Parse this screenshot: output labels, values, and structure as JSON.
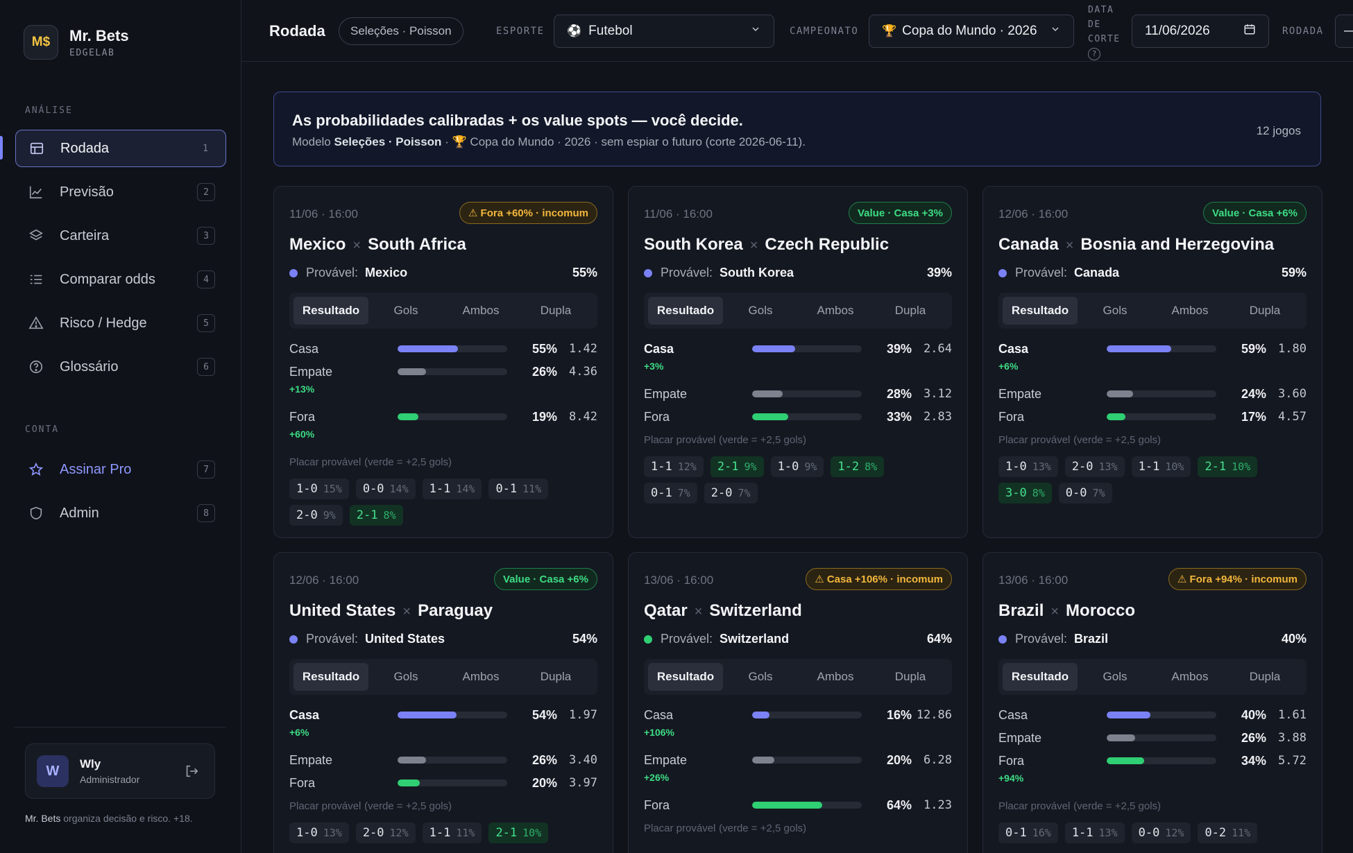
{
  "brand": {
    "name": "Mr. Bets",
    "sub": "EDGELAB",
    "logo": "M$"
  },
  "sidebar": {
    "section_analysis": "ANÁLISE",
    "section_account": "CONTA",
    "items": [
      {
        "label": "Rodada",
        "badge": "1",
        "icon": "table-icon"
      },
      {
        "label": "Previsão",
        "badge": "2",
        "icon": "chart-line-icon"
      },
      {
        "label": "Carteira",
        "badge": "3",
        "icon": "layers-icon"
      },
      {
        "label": "Comparar odds",
        "badge": "4",
        "icon": "list-compare-icon"
      },
      {
        "label": "Risco / Hedge",
        "badge": "5",
        "icon": "warning-icon"
      },
      {
        "label": "Glossário",
        "badge": "6",
        "icon": "help-circle-icon"
      },
      {
        "label": "Assinar Pro",
        "badge": "7",
        "icon": "star-icon"
      },
      {
        "label": "Admin",
        "badge": "8",
        "icon": "shield-icon"
      }
    ],
    "user": {
      "initial": "W",
      "name": "Wly",
      "role": "Administrador"
    },
    "footer_brand": "Mr. Bets",
    "footer_text": " organiza decisão e risco. +18."
  },
  "topbar": {
    "title": "Rodada",
    "pill": "Seleções · Poisson",
    "sport_label": "ESPORTE",
    "sport_value": "Futebol",
    "league_label": "CAMPEONATO",
    "league_value": "Copa do Mundo · 2026",
    "cutoff_label_1": "DATA",
    "cutoff_label_2": "DE",
    "cutoff_label_3": "CORTE",
    "cutoff_help": "?",
    "cutoff_value": "11/06/2026",
    "round_label": "RODADA",
    "round_value": "—"
  },
  "banner": {
    "title": "As probabilidades calibradas + os value spots — você decide.",
    "sub_prefix": "Modelo ",
    "sub_model": "Seleções · Poisson",
    "sub_rest": " · 🏆 Copa do Mundo · 2026 · sem espiar o futuro (corte 2026-06-11).",
    "count": "12 jogos"
  },
  "tabs": [
    "Resultado",
    "Gols",
    "Ambos",
    "Dupla"
  ],
  "score_head": "Placar provável",
  "score_hint": "(verde = +2,5 gols)",
  "prob_label": "Provável:",
  "colors": {
    "home": "#7b82f5",
    "draw": "#7d828e",
    "away": "#2fcf73",
    "value": "#3ddc84",
    "warn": "#f3b73d"
  },
  "games": [
    {
      "date": "11/06 · 16:00",
      "badge": "⚠ Fora +60% · incomum",
      "badge_type": "warn",
      "home": "Mexico",
      "away": "South Africa",
      "fav": "Mexico",
      "fav_pct": "55%",
      "fav_side": "home",
      "outcomes": [
        {
          "name": "Casa",
          "pct": "55%",
          "odd": "1.42",
          "value": 0.55,
          "edge": "",
          "bold": false
        },
        {
          "name": "Empate",
          "pct": "26%",
          "odd": "4.36",
          "value": 0.26,
          "edge": "+13%",
          "bold": false
        },
        {
          "name": "Fora",
          "pct": "19%",
          "odd": "8.42",
          "value": 0.19,
          "edge": "+60%",
          "bold": false
        }
      ],
      "scores": [
        {
          "s": "1-0",
          "p": "15%",
          "g": false
        },
        {
          "s": "0-0",
          "p": "14%",
          "g": false
        },
        {
          "s": "1-1",
          "p": "14%",
          "g": false
        },
        {
          "s": "0-1",
          "p": "11%",
          "g": false
        },
        {
          "s": "2-0",
          "p": "9%",
          "g": false
        },
        {
          "s": "2-1",
          "p": "8%",
          "g": true
        }
      ]
    },
    {
      "date": "11/06 · 16:00",
      "badge": "Value · Casa +3%",
      "badge_type": "value",
      "home": "South Korea",
      "away": "Czech Republic",
      "fav": "South Korea",
      "fav_pct": "39%",
      "fav_side": "home",
      "outcomes": [
        {
          "name": "Casa",
          "pct": "39%",
          "odd": "2.64",
          "value": 0.39,
          "edge": "+3%",
          "bold": true
        },
        {
          "name": "Empate",
          "pct": "28%",
          "odd": "3.12",
          "value": 0.28,
          "edge": "",
          "bold": false
        },
        {
          "name": "Fora",
          "pct": "33%",
          "odd": "2.83",
          "value": 0.33,
          "edge": "",
          "bold": false
        }
      ],
      "scores": [
        {
          "s": "1-1",
          "p": "12%",
          "g": false
        },
        {
          "s": "2-1",
          "p": "9%",
          "g": true
        },
        {
          "s": "1-0",
          "p": "9%",
          "g": false
        },
        {
          "s": "1-2",
          "p": "8%",
          "g": true
        },
        {
          "s": "0-1",
          "p": "7%",
          "g": false
        },
        {
          "s": "2-0",
          "p": "7%",
          "g": false
        }
      ]
    },
    {
      "date": "12/06 · 16:00",
      "badge": "Value · Casa +6%",
      "badge_type": "value",
      "home": "Canada",
      "away": "Bosnia and Herzegovina",
      "fav": "Canada",
      "fav_pct": "59%",
      "fav_side": "home",
      "outcomes": [
        {
          "name": "Casa",
          "pct": "59%",
          "odd": "1.80",
          "value": 0.59,
          "edge": "+6%",
          "bold": true
        },
        {
          "name": "Empate",
          "pct": "24%",
          "odd": "3.60",
          "value": 0.24,
          "edge": "",
          "bold": false
        },
        {
          "name": "Fora",
          "pct": "17%",
          "odd": "4.57",
          "value": 0.17,
          "edge": "",
          "bold": false
        }
      ],
      "scores": [
        {
          "s": "1-0",
          "p": "13%",
          "g": false
        },
        {
          "s": "2-0",
          "p": "13%",
          "g": false
        },
        {
          "s": "1-1",
          "p": "10%",
          "g": false
        },
        {
          "s": "2-1",
          "p": "10%",
          "g": true
        },
        {
          "s": "3-0",
          "p": "8%",
          "g": true
        },
        {
          "s": "0-0",
          "p": "7%",
          "g": false
        }
      ]
    },
    {
      "date": "12/06 · 16:00",
      "badge": "Value · Casa +6%",
      "badge_type": "value",
      "home": "United States",
      "away": "Paraguay",
      "fav": "United States",
      "fav_pct": "54%",
      "fav_side": "home",
      "outcomes": [
        {
          "name": "Casa",
          "pct": "54%",
          "odd": "1.97",
          "value": 0.54,
          "edge": "+6%",
          "bold": true
        },
        {
          "name": "Empate",
          "pct": "26%",
          "odd": "3.40",
          "value": 0.26,
          "edge": "",
          "bold": false
        },
        {
          "name": "Fora",
          "pct": "20%",
          "odd": "3.97",
          "value": 0.2,
          "edge": "",
          "bold": false
        }
      ],
      "scores": [
        {
          "s": "1-0",
          "p": "13%",
          "g": false
        },
        {
          "s": "2-0",
          "p": "12%",
          "g": false
        },
        {
          "s": "1-1",
          "p": "11%",
          "g": false
        },
        {
          "s": "2-1",
          "p": "10%",
          "g": true
        }
      ]
    },
    {
      "date": "13/06 · 16:00",
      "badge": "⚠ Casa +106% · incomum",
      "badge_type": "warn",
      "home": "Qatar",
      "away": "Switzerland",
      "fav": "Switzerland",
      "fav_pct": "64%",
      "fav_side": "away",
      "outcomes": [
        {
          "name": "Casa",
          "pct": "16%",
          "odd": "12.86",
          "value": 0.16,
          "edge": "+106%",
          "bold": false
        },
        {
          "name": "Empate",
          "pct": "20%",
          "odd": "6.28",
          "value": 0.2,
          "edge": "+26%",
          "bold": false
        },
        {
          "name": "Fora",
          "pct": "64%",
          "odd": "1.23",
          "value": 0.64,
          "edge": "",
          "bold": false
        }
      ],
      "scores": []
    },
    {
      "date": "13/06 · 16:00",
      "badge": "⚠ Fora +94% · incomum",
      "badge_type": "warn",
      "home": "Brazil",
      "away": "Morocco",
      "fav": "Brazil",
      "fav_pct": "40%",
      "fav_side": "home",
      "outcomes": [
        {
          "name": "Casa",
          "pct": "40%",
          "odd": "1.61",
          "value": 0.4,
          "edge": "",
          "bold": false
        },
        {
          "name": "Empate",
          "pct": "26%",
          "odd": "3.88",
          "value": 0.26,
          "edge": "",
          "bold": false
        },
        {
          "name": "Fora",
          "pct": "34%",
          "odd": "5.72",
          "value": 0.34,
          "edge": "+94%",
          "bold": false
        }
      ],
      "scores": [
        {
          "s": "0-1",
          "p": "16%",
          "g": false
        },
        {
          "s": "1-1",
          "p": "13%",
          "g": false
        },
        {
          "s": "0-0",
          "p": "12%",
          "g": false
        },
        {
          "s": "0-2",
          "p": "11%",
          "g": false
        }
      ]
    }
  ]
}
